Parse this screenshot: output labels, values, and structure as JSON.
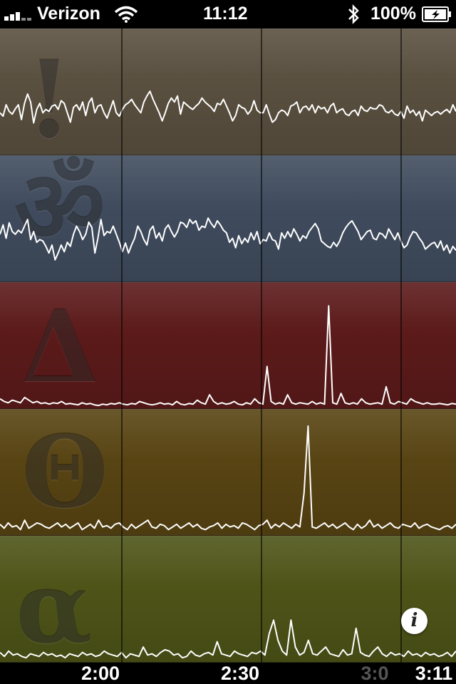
{
  "status_bar": {
    "carrier": "Verizon",
    "time": "11:12",
    "battery_percent": "100%",
    "icons": [
      "signal-icon",
      "wifi-icon",
      "bluetooth-icon",
      "battery-charging-icon"
    ]
  },
  "panels": [
    {
      "name": "panel-exclamation",
      "glyph": "!",
      "color": "#5a5040",
      "values": [
        60,
        55,
        72,
        62,
        58,
        66,
        72,
        50,
        74,
        88,
        76,
        45,
        65,
        74,
        60,
        65,
        62,
        70,
        72,
        65,
        78,
        74,
        60,
        46,
        68,
        72,
        64,
        76,
        56,
        75,
        82,
        60,
        70,
        72,
        60,
        52,
        65,
        78,
        60,
        55,
        65,
        72,
        75,
        80,
        72,
        66,
        60,
        76,
        85,
        92,
        80,
        70,
        60,
        48,
        60,
        74,
        82,
        76,
        85,
        58,
        76,
        72,
        68,
        65,
        70,
        74,
        82,
        76,
        72,
        68,
        62,
        74,
        72,
        80,
        70,
        60,
        48,
        56,
        72,
        68,
        66,
        58,
        64,
        78,
        64,
        60,
        60,
        72,
        58,
        46,
        50,
        60,
        64,
        62,
        56,
        70,
        72,
        76,
        60,
        68,
        70,
        64,
        72,
        60,
        70,
        66,
        68,
        60,
        70,
        74,
        60,
        64,
        66,
        58,
        56,
        62,
        64,
        56,
        70,
        64,
        62,
        68,
        66,
        66,
        72,
        70,
        62,
        60,
        64,
        58,
        56,
        62,
        52,
        70,
        60,
        64,
        56,
        62,
        48,
        64,
        60,
        56,
        60,
        62,
        58,
        62,
        65,
        60,
        72,
        62
      ]
    },
    {
      "name": "panel-om",
      "glyph": "ॐ",
      "color": "#404c5e",
      "values": [
        68,
        82,
        62,
        85,
        72,
        68,
        74,
        70,
        80,
        90,
        60,
        72,
        56,
        60,
        58,
        50,
        40,
        52,
        30,
        40,
        52,
        42,
        56,
        50,
        68,
        80,
        72,
        60,
        68,
        86,
        78,
        40,
        62,
        90,
        66,
        72,
        70,
        80,
        68,
        56,
        42,
        55,
        40,
        52,
        62,
        80,
        72,
        60,
        52,
        74,
        80,
        62,
        70,
        58,
        76,
        82,
        72,
        64,
        72,
        86,
        84,
        78,
        90,
        84,
        88,
        74,
        80,
        78,
        92,
        84,
        78,
        88,
        82,
        74,
        70,
        56,
        62,
        48,
        66,
        54,
        62,
        56,
        70,
        60,
        72,
        54,
        60,
        58,
        70,
        60,
        58,
        46,
        70,
        62,
        72,
        64,
        76,
        68,
        58,
        66,
        62,
        72,
        78,
        84,
        76,
        58,
        54,
        50,
        48,
        56,
        50,
        58,
        70,
        78,
        84,
        88,
        80,
        72,
        60,
        66,
        72,
        74,
        62,
        60,
        70,
        68,
        62,
        76,
        68,
        60,
        70,
        58,
        48,
        52,
        64,
        72,
        70,
        62,
        56,
        46,
        50,
        54,
        56,
        48,
        58,
        44,
        52,
        40,
        50,
        44
      ]
    },
    {
      "name": "panel-delta",
      "glyph": "Δ",
      "color": "#5c1a1a",
      "values": [
        12,
        8,
        6,
        10,
        8,
        6,
        14,
        10,
        6,
        8,
        5,
        6,
        4,
        6,
        5,
        8,
        4,
        5,
        4,
        3,
        6,
        4,
        5,
        3,
        2,
        4,
        3,
        5,
        4,
        6,
        4,
        3,
        5,
        4,
        8,
        6,
        4,
        3,
        4,
        6,
        4,
        5,
        3,
        8,
        4,
        3,
        5,
        4,
        10,
        6,
        4,
        18,
        8,
        4,
        6,
        4,
        5,
        8,
        4,
        3,
        6,
        4,
        12,
        6,
        4,
        60,
        8,
        4,
        6,
        4,
        18,
        6,
        4,
        6,
        5,
        4,
        8,
        4,
        6,
        4,
        150,
        6,
        4,
        20,
        6,
        4,
        6,
        4,
        12,
        6,
        4,
        5,
        6,
        4,
        30,
        6,
        4,
        8,
        6,
        4,
        12,
        8,
        6,
        4,
        6,
        4,
        4,
        5,
        4,
        3,
        5,
        4
      ]
    },
    {
      "name": "panel-theta",
      "glyph": "Θ",
      "color": "#584413",
      "values": [
        14,
        8,
        16,
        10,
        12,
        6,
        20,
        8,
        12,
        16,
        14,
        10,
        8,
        12,
        16,
        10,
        14,
        8,
        12,
        16,
        6,
        10,
        14,
        8,
        20,
        10,
        12,
        8,
        14,
        16,
        10,
        6,
        14,
        8,
        12,
        16,
        20,
        10,
        8,
        14,
        12,
        6,
        10,
        14,
        8,
        12,
        16,
        10,
        14,
        8,
        6,
        10,
        12,
        16,
        8,
        14,
        10,
        12,
        8,
        16,
        14,
        10,
        6,
        12,
        14,
        20,
        8,
        14,
        10,
        16,
        12,
        8,
        14,
        10,
        60,
        160,
        10,
        8,
        12,
        16,
        10,
        14,
        8,
        12,
        16,
        10,
        6,
        14,
        8,
        12,
        20,
        10,
        14,
        8,
        12,
        16,
        10,
        8,
        14,
        12,
        10,
        16,
        8,
        12,
        14,
        10,
        8,
        6,
        10,
        12,
        8,
        14
      ]
    },
    {
      "name": "panel-alpha",
      "glyph": "α",
      "color": "#4e5418",
      "values": [
        12,
        6,
        14,
        8,
        10,
        6,
        4,
        10,
        8,
        6,
        12,
        8,
        10,
        6,
        8,
        4,
        10,
        8,
        6,
        12,
        8,
        10,
        6,
        8,
        14,
        10,
        8,
        6,
        12,
        4,
        10,
        8,
        6,
        20,
        8,
        10,
        6,
        12,
        16,
        14,
        8,
        10,
        4,
        6,
        14,
        8,
        6,
        10,
        12,
        8,
        28,
        10,
        8,
        6,
        14,
        10,
        8,
        6,
        12,
        10,
        14,
        8,
        40,
        60,
        30,
        14,
        8,
        60,
        20,
        8,
        12,
        30,
        10,
        8,
        14,
        20,
        10,
        8,
        6,
        16,
        8,
        10,
        48,
        12,
        8,
        6,
        14,
        20,
        10,
        6,
        12,
        8,
        10,
        6,
        14,
        8,
        10,
        6,
        12,
        8,
        10,
        6,
        8,
        12,
        6,
        14
      ]
    }
  ],
  "time_axis": {
    "ticks": [
      {
        "label": "2:00",
        "color": "#ffffff"
      },
      {
        "label": "2:30",
        "color": "#ffffff"
      },
      {
        "label": "3:0",
        "color": "#555555"
      },
      {
        "label": "3:11",
        "color": "#ffffff"
      }
    ]
  },
  "info_button": {
    "label": "i",
    "icon": "info-icon"
  }
}
